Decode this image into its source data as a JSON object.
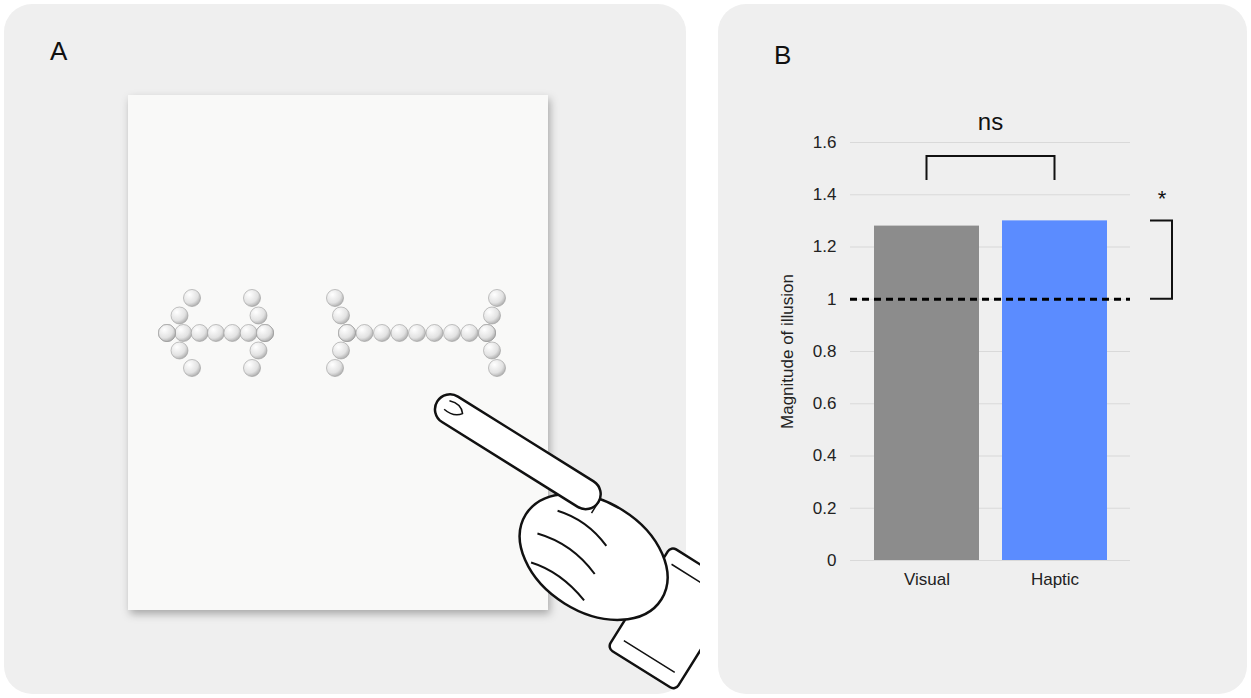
{
  "illustration": {
    "letter": "A"
  },
  "chart_data": {
    "type": "bar",
    "letter": "B",
    "categories": [
      "Visual",
      "Haptic"
    ],
    "values": [
      1.28,
      1.3
    ],
    "colors": [
      "#8c8c8c",
      "#5b8cff"
    ],
    "y_label": "Magnitude of illusion",
    "ylim": [
      0,
      1.6
    ],
    "yticks": [
      0,
      0.2,
      0.4,
      0.6,
      0.8,
      1,
      1.2,
      1.4,
      1.6
    ],
    "grid": true,
    "reference_line": {
      "value": 1,
      "line_style": "dashed"
    },
    "annotations": [
      {
        "text": "ns",
        "categories": [
          "Visual",
          "Haptic"
        ]
      },
      {
        "text": "*",
        "category": "Haptic",
        "baseline": 1
      }
    ]
  }
}
